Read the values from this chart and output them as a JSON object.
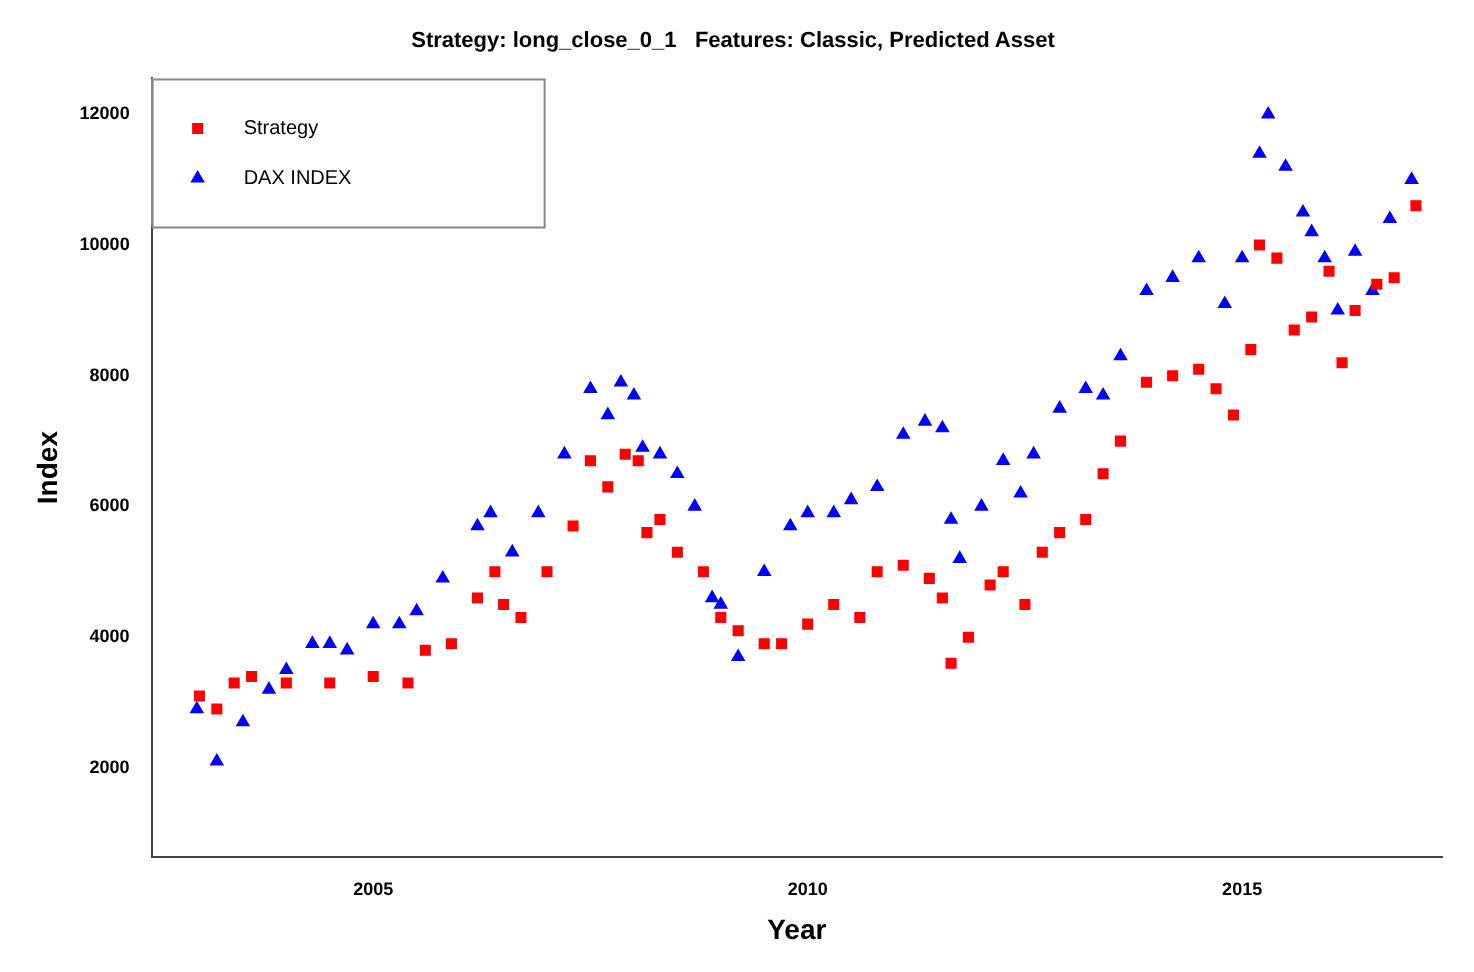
{
  "chart_data": {
    "type": "scatter",
    "title": "Strategy: long_close_0_1   Features: Classic, Predicted Asset",
    "xlabel": "Year",
    "ylabel": "Index",
    "xlim": [
      2002.45,
      2017.3
    ],
    "xticks": [
      2005,
      2010,
      2015
    ],
    "ylim": [
      640,
      12550
    ],
    "yticks": [
      2000,
      4000,
      6000,
      8000,
      10000,
      12000
    ],
    "grid": false,
    "legend": "top left",
    "series": [
      {
        "name": "Strategy",
        "color": "#ff0000",
        "marker": "square",
        "x": [
          2003.0,
          2003.2,
          2003.4,
          2003.6,
          2004.0,
          2004.5,
          2005.0,
          2005.4,
          2005.6,
          2005.9,
          2006.2,
          2006.4,
          2006.5,
          2006.7,
          2007.0,
          2007.3,
          2007.5,
          2007.7,
          2007.9,
          2008.05,
          2008.15,
          2008.3,
          2008.5,
          2008.8,
          2009.0,
          2009.2,
          2009.5,
          2009.7,
          2010.0,
          2010.3,
          2010.6,
          2010.8,
          2011.1,
          2011.4,
          2011.55,
          2011.65,
          2011.85,
          2012.1,
          2012.25,
          2012.5,
          2012.7,
          2012.9,
          2013.2,
          2013.4,
          2013.6,
          2013.9,
          2014.2,
          2014.5,
          2014.7,
          2014.9,
          2015.1,
          2015.2,
          2015.4,
          2015.6,
          2015.8,
          2016.0,
          2016.15,
          2016.3,
          2016.55,
          2016.75,
          2017.0
        ],
        "values": [
          3100,
          2900,
          3300,
          3400,
          3300,
          3300,
          3400,
          3300,
          3800,
          3900,
          4600,
          5000,
          4500,
          4300,
          5000,
          5700,
          6700,
          6300,
          6800,
          6700,
          5600,
          5800,
          5300,
          5000,
          4300,
          4100,
          3900,
          3900,
          4200,
          4500,
          4300,
          5000,
          5100,
          4900,
          4600,
          3600,
          4000,
          4800,
          5000,
          4500,
          5300,
          5600,
          5800,
          6500,
          7000,
          7900,
          8000,
          8100,
          7800,
          7400,
          8400,
          10000,
          9800,
          8700,
          8900,
          9600,
          8200,
          9000,
          9400,
          9500,
          10600
        ]
      },
      {
        "name": "DAX INDEX",
        "color": "#0000ff",
        "marker": "triangle",
        "x": [
          2002.97,
          2003.2,
          2003.5,
          2003.8,
          2004.0,
          2004.3,
          2004.5,
          2004.7,
          2005.0,
          2005.3,
          2005.5,
          2005.8,
          2006.2,
          2006.35,
          2006.6,
          2006.9,
          2007.2,
          2007.5,
          2007.7,
          2007.85,
          2008.0,
          2008.1,
          2008.3,
          2008.5,
          2008.7,
          2008.9,
          2009.0,
          2009.2,
          2009.5,
          2009.8,
          2010.0,
          2010.3,
          2010.5,
          2010.8,
          2011.1,
          2011.35,
          2011.55,
          2011.65,
          2011.75,
          2012.0,
          2012.25,
          2012.45,
          2012.6,
          2012.9,
          2013.2,
          2013.4,
          2013.6,
          2013.9,
          2014.2,
          2014.5,
          2014.8,
          2015.0,
          2015.2,
          2015.3,
          2015.5,
          2015.7,
          2015.8,
          2015.95,
          2016.1,
          2016.3,
          2016.5,
          2016.7,
          2016.95
        ],
        "values": [
          2900,
          2100,
          2700,
          3200,
          3500,
          3900,
          3900,
          3800,
          4200,
          4200,
          4400,
          4900,
          5700,
          5900,
          5300,
          5900,
          6800,
          7800,
          7400,
          7900,
          7700,
          6900,
          6800,
          6500,
          6000,
          4600,
          4500,
          3700,
          5000,
          5700,
          5900,
          5900,
          6100,
          6300,
          7100,
          7300,
          7200,
          5800,
          5200,
          6000,
          6700,
          6200,
          6800,
          7500,
          7800,
          7700,
          8300,
          9300,
          9500,
          9800,
          9100,
          9800,
          11400,
          12000,
          11200,
          10500,
          10200,
          9800,
          9000,
          9900,
          9300,
          10400,
          11000
        ]
      }
    ]
  }
}
